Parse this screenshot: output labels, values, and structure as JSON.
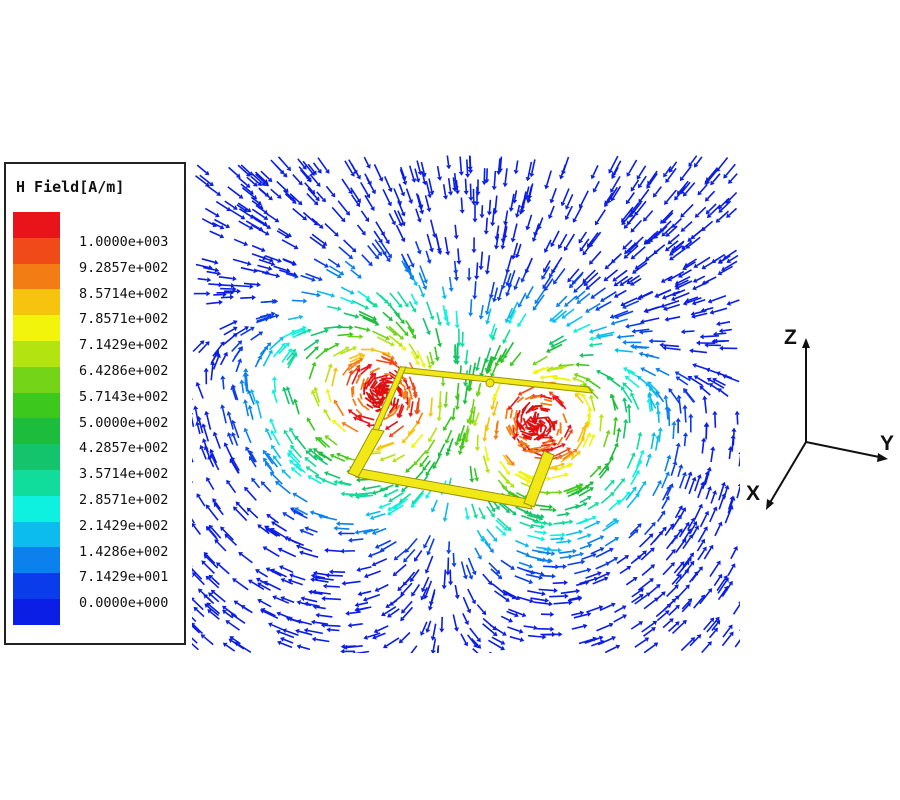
{
  "legend": {
    "title": "H Field[A/m]",
    "entries": [
      {
        "label": "1.0000e+003",
        "color": "#e8141a"
      },
      {
        "label": "9.2857e+002",
        "color": "#f04a18"
      },
      {
        "label": "8.5714e+002",
        "color": "#f47c14"
      },
      {
        "label": "7.8571e+002",
        "color": "#f6c30e"
      },
      {
        "label": "7.1429e+002",
        "color": "#f2f40c"
      },
      {
        "label": "6.4286e+002",
        "color": "#b4e410"
      },
      {
        "label": "5.7143e+002",
        "color": "#74d418"
      },
      {
        "label": "5.0000e+002",
        "color": "#3cc81c"
      },
      {
        "label": "4.2857e+002",
        "color": "#1cbc3c"
      },
      {
        "label": "3.5714e+002",
        "color": "#14c46c"
      },
      {
        "label": "2.8571e+002",
        "color": "#10dc9c"
      },
      {
        "label": "2.1429e+002",
        "color": "#0ef0e0"
      },
      {
        "label": "1.4286e+002",
        "color": "#0cbcee"
      },
      {
        "label": "7.1429e+001",
        "color": "#0c80ec"
      },
      {
        "label": "0.0000e+000",
        "color": "#0a3cec"
      },
      {
        "label": "",
        "color": "#0a1ee6"
      }
    ]
  },
  "axes": {
    "z": "Z",
    "y": "Y",
    "x": "X"
  },
  "colors": {
    "loop": "#f0e817",
    "loop_edge": "#9a9400",
    "hot": "#e01010",
    "arrow_far": "#1248c8"
  }
}
